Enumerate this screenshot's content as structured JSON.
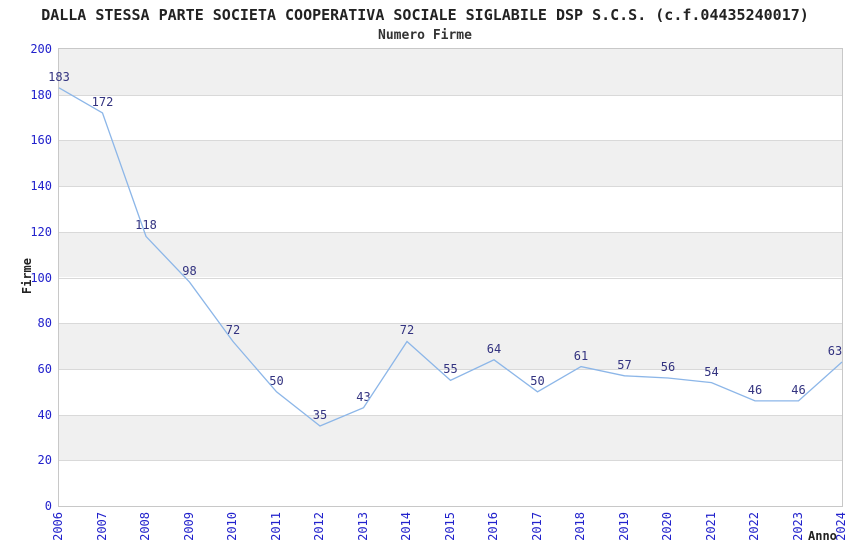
{
  "chart_data": {
    "type": "line",
    "title": "DALLA STESSA PARTE SOCIETA COOPERATIVA SOCIALE SIGLABILE DSP S.C.S. (c.f.04435240017)",
    "subtitle": "Numero Firme",
    "xlabel": "Anno",
    "ylabel": "Firme",
    "categories": [
      "2006",
      "2007",
      "2008",
      "2009",
      "2010",
      "2011",
      "2012",
      "2013",
      "2014",
      "2015",
      "2016",
      "2017",
      "2018",
      "2019",
      "2020",
      "2021",
      "2022",
      "2023",
      "2024"
    ],
    "values": [
      183,
      172,
      118,
      98,
      72,
      50,
      35,
      43,
      72,
      55,
      64,
      50,
      61,
      57,
      56,
      54,
      46,
      46,
      63
    ],
    "ylim": [
      0,
      200
    ],
    "ytick_step": 20,
    "yticks": [
      "0",
      "20",
      "40",
      "60",
      "80",
      "100",
      "120",
      "140",
      "160",
      "180",
      "200"
    ],
    "grid": "horizontal-bands-alternating",
    "legend": "none",
    "point_labels_shown": true,
    "colors": {
      "line": "#8cb6e8",
      "tick_label": "#2222cc",
      "point_label": "#333380",
      "band": "#f0f0f0",
      "gridline": "#d9d9d9",
      "plot_border": "#c8c8c8",
      "title": "#222222",
      "background": "#ffffff"
    }
  }
}
